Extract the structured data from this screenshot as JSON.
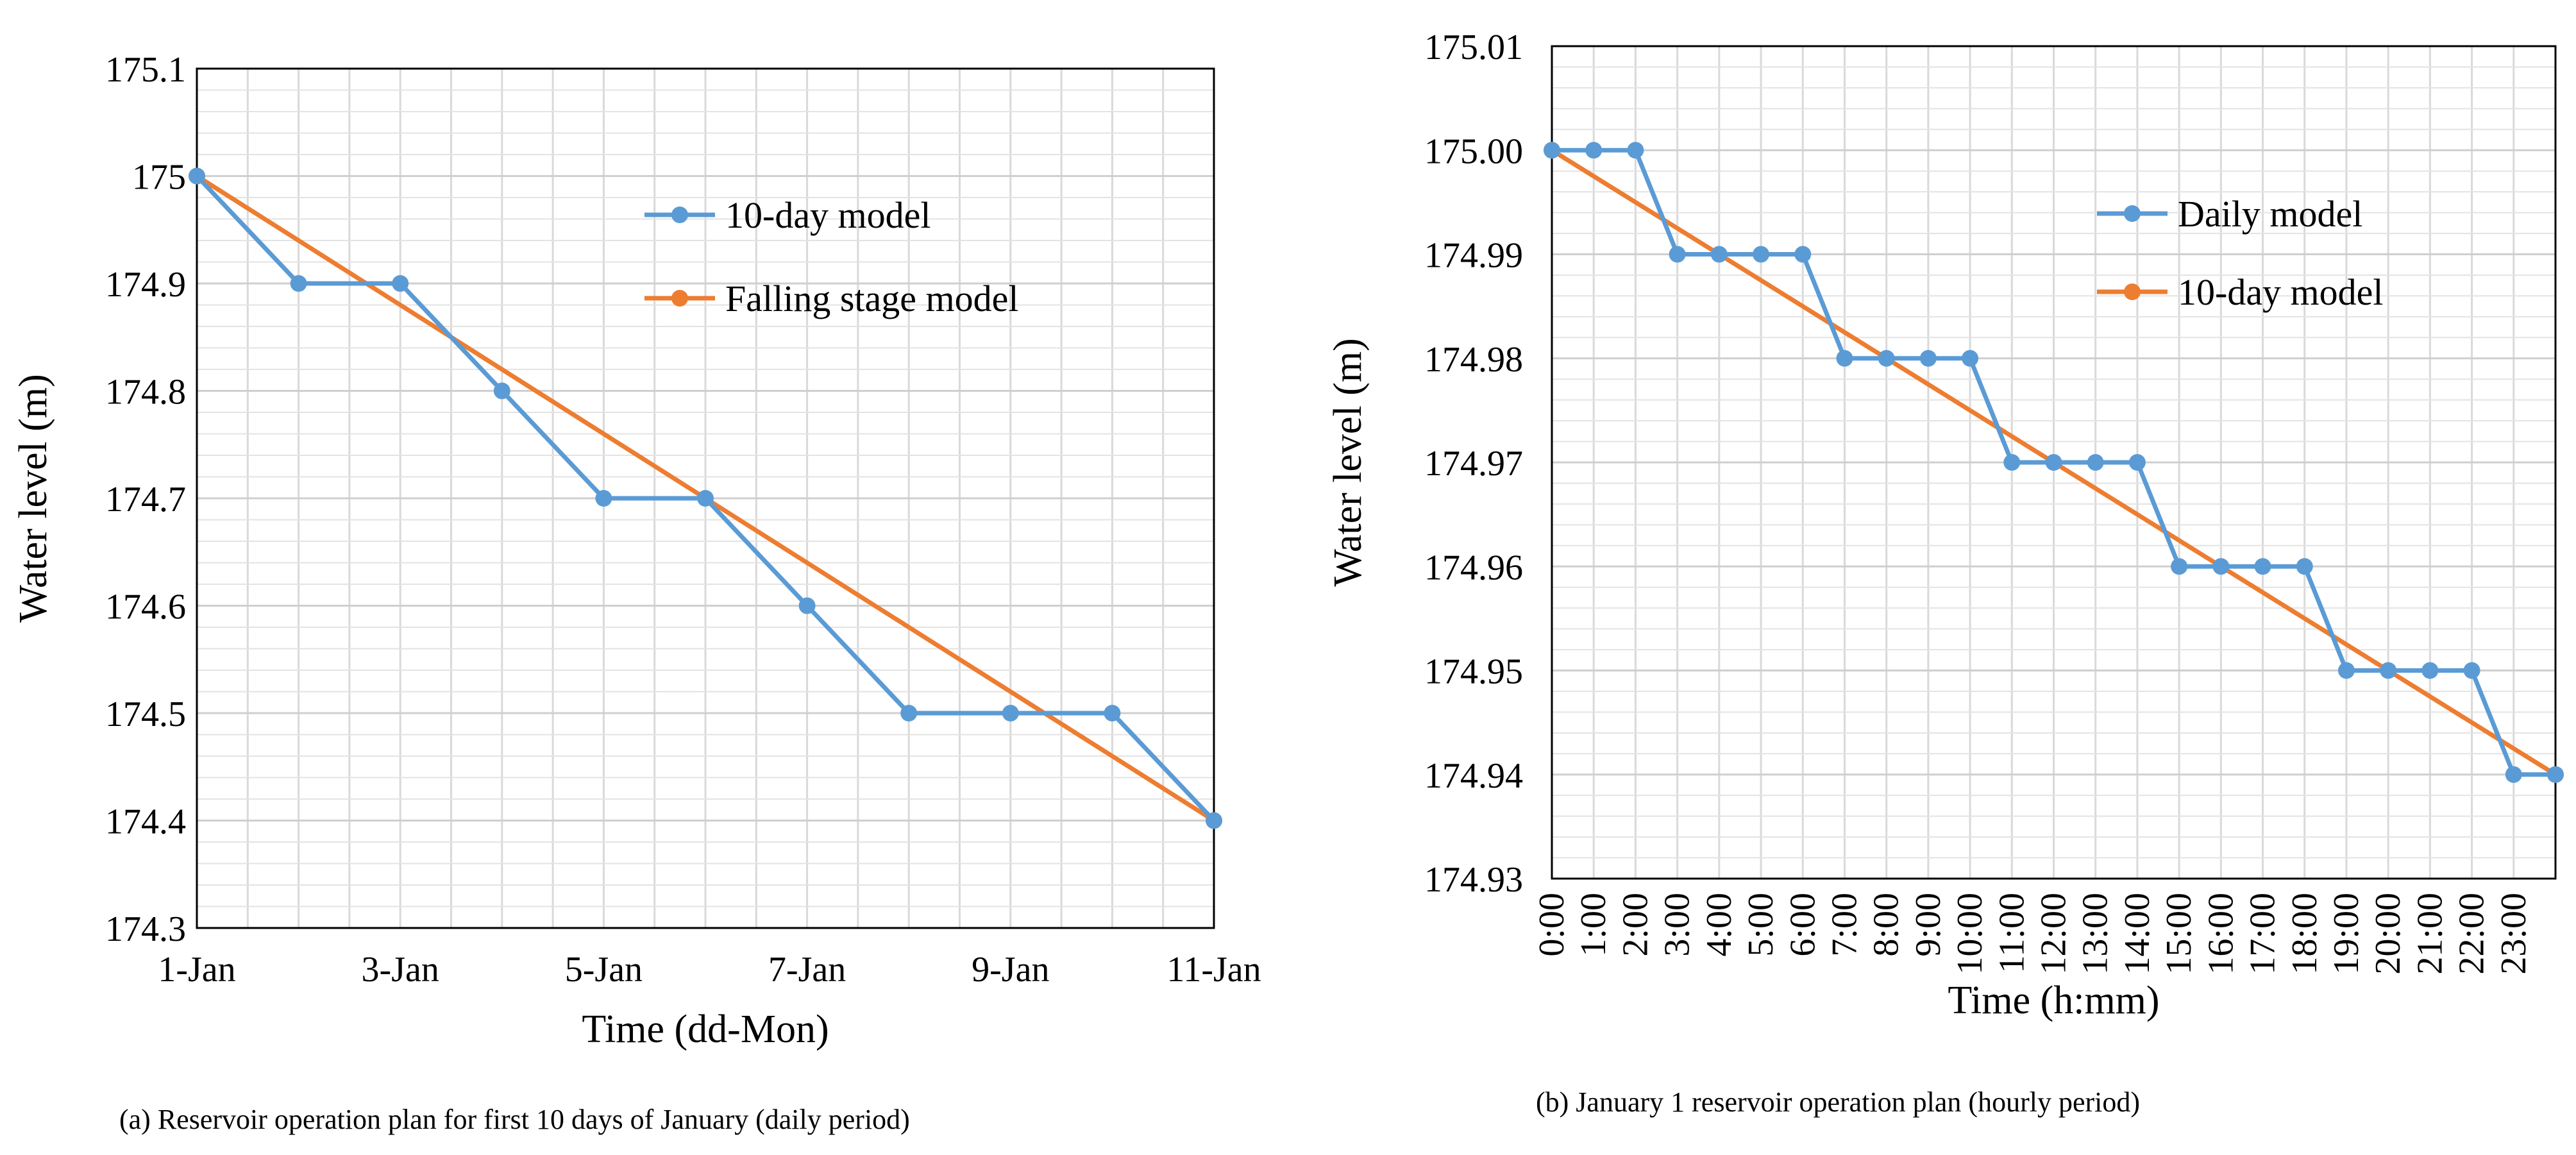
{
  "chart_data": [
    {
      "type": "line",
      "caption": "(a)  Reservoir operation plan for first 10 days of January (daily period)",
      "xlabel": "Time (dd-Mon)",
      "ylabel": "Water level (m)",
      "ylim": [
        174.3,
        175.1
      ],
      "yticks": [
        "174.3",
        "174.4",
        "174.5",
        "174.6",
        "174.7",
        "174.8",
        "174.9",
        "175",
        "175.1"
      ],
      "xlim": [
        0,
        10
      ],
      "xticks": [
        "1-Jan",
        "3-Jan",
        "5-Jan",
        "7-Jan",
        "9-Jan",
        "11-Jan"
      ],
      "grid": true,
      "legend_position": "top-right",
      "series": [
        {
          "name": "10-day model",
          "color": "#5B9BD5",
          "x": [
            0,
            1,
            2,
            3,
            4,
            5,
            6,
            7,
            8,
            9,
            10
          ],
          "values": [
            175.0,
            174.9,
            174.9,
            174.8,
            174.7,
            174.7,
            174.6,
            174.5,
            174.5,
            174.5,
            174.4
          ]
        },
        {
          "name": "Falling stage model",
          "color": "#ED7D31",
          "x": [
            0,
            10
          ],
          "values": [
            175.0,
            174.4
          ]
        }
      ]
    },
    {
      "type": "line",
      "caption": "(b)  January 1 reservoir operation plan (hourly period)",
      "xlabel": "Time (h:mm)",
      "ylabel": "Water level (m)",
      "ylim": [
        174.93,
        175.01
      ],
      "yticks": [
        "174.93",
        "174.94",
        "174.95",
        "174.96",
        "174.97",
        "174.98",
        "174.99",
        "175.00",
        "175.01"
      ],
      "xlim": [
        0,
        24
      ],
      "xticks": [
        "0:00",
        "1:00",
        "2:00",
        "3:00",
        "4:00",
        "5:00",
        "6:00",
        "7:00",
        "8:00",
        "9:00",
        "10:00",
        "11:00",
        "12:00",
        "13:00",
        "14:00",
        "15:00",
        "16:00",
        "17:00",
        "18:00",
        "19:00",
        "20:00",
        "21:00",
        "22:00",
        "23:00"
      ],
      "grid": true,
      "legend_position": "top-right",
      "series": [
        {
          "name": "Daily model",
          "color": "#5B9BD5",
          "x": [
            0,
            1,
            2,
            3,
            4,
            5,
            6,
            7,
            8,
            9,
            10,
            11,
            12,
            13,
            14,
            15,
            16,
            17,
            18,
            19,
            20,
            21,
            22,
            23,
            24
          ],
          "values": [
            175.0,
            175.0,
            175.0,
            174.99,
            174.99,
            174.99,
            174.99,
            174.98,
            174.98,
            174.98,
            174.98,
            174.97,
            174.97,
            174.97,
            174.97,
            174.96,
            174.96,
            174.96,
            174.96,
            174.95,
            174.95,
            174.95,
            174.95,
            174.94,
            174.94
          ]
        },
        {
          "name": "10-day model",
          "color": "#ED7D31",
          "x": [
            0,
            24
          ],
          "values": [
            175.0,
            174.94
          ]
        }
      ]
    }
  ]
}
